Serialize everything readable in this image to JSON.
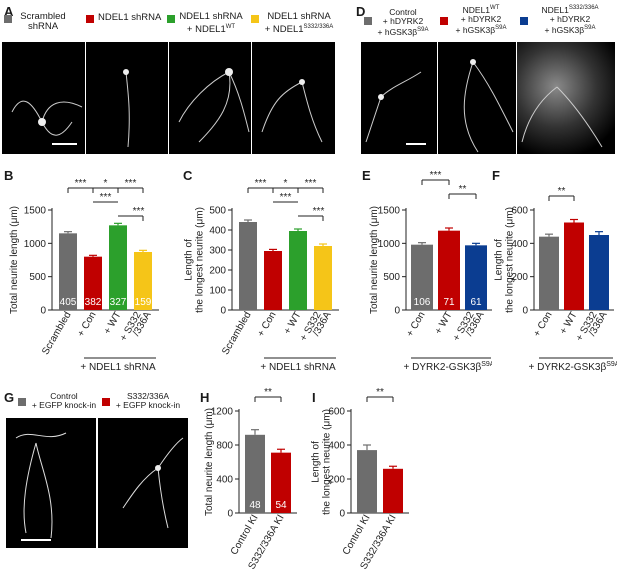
{
  "panels": {
    "A": {
      "letter": "A",
      "legend": [
        {
          "label_lines": [
            "Scrambled",
            "shRNA"
          ],
          "color": "#6d6d6d"
        },
        {
          "label_lines": [
            "NDEL1 shRNA",
            ""
          ],
          "color": "#c00000"
        },
        {
          "label_lines": [
            "NDEL1 shRNA",
            "+ NDEL1WT"
          ],
          "color": "#2ca02c"
        },
        {
          "label_lines": [
            "NDEL1 shRNA",
            "+ NDEL1S332/336A"
          ],
          "color": "#f5c518"
        }
      ]
    },
    "D": {
      "letter": "D",
      "legend": [
        {
          "label_lines": [
            "Control",
            "+ hDYRK2",
            "+ hGSK3βS9A"
          ],
          "color": "#6d6d6d"
        },
        {
          "label_lines": [
            "NDEL1WT",
            "+ hDYRK2",
            "+ hGSK3βS9A"
          ],
          "color": "#c00000"
        },
        {
          "label_lines": [
            "NDEL1S332/336A",
            "+ hDYRK2",
            "+ hGSK3βS9A"
          ],
          "color": "#0b3d91"
        }
      ]
    },
    "G": {
      "letter": "G",
      "legend": [
        {
          "label_lines": [
            "Control",
            "+ EGFP knock-in"
          ],
          "color": "#6d6d6d"
        },
        {
          "label_lines": [
            "S332/336A",
            "+ EGFP knock-in"
          ],
          "color": "#c00000"
        }
      ]
    }
  },
  "chart_data": [
    {
      "id": "B",
      "letter": "B",
      "type": "bar",
      "ylabel": "Total neurite length (μm)",
      "ylim": [
        0,
        1500
      ],
      "yticks": [
        0,
        500,
        1000,
        1500
      ],
      "categories": [
        "Scrambled",
        "+ Con",
        "+ WT",
        "+ S332 /336A"
      ],
      "values": [
        1150,
        800,
        1270,
        870
      ],
      "errors": [
        25,
        20,
        30,
        25
      ],
      "n_labels": [
        "405",
        "382",
        "327",
        "159"
      ],
      "colors": [
        "#6d6d6d",
        "#c00000",
        "#2ca02c",
        "#f5c518"
      ],
      "group_label": "+ NDEL1 shRNA",
      "significance": [
        "***",
        "*",
        "***",
        "***",
        "***"
      ]
    },
    {
      "id": "C",
      "letter": "C",
      "type": "bar",
      "ylabel": "Length of the longest neurite (μm)",
      "ylim": [
        0,
        500
      ],
      "yticks": [
        0,
        100,
        200,
        300,
        400,
        500
      ],
      "categories": [
        "Scrambled",
        "+ Con",
        "+ WT",
        "+ S332 /336A"
      ],
      "values": [
        440,
        295,
        395,
        320
      ],
      "errors": [
        10,
        8,
        10,
        10
      ],
      "n_labels": [],
      "colors": [
        "#6d6d6d",
        "#c00000",
        "#2ca02c",
        "#f5c518"
      ],
      "group_label": "+ NDEL1 shRNA",
      "significance": [
        "***",
        "*",
        "***",
        "***",
        "***"
      ]
    },
    {
      "id": "E",
      "letter": "E",
      "type": "bar",
      "ylabel": "Total neurite length (μm)",
      "ylim": [
        0,
        1500
      ],
      "yticks": [
        0,
        500,
        1000,
        1500
      ],
      "categories": [
        "+ Con",
        "+ WT",
        "+ S332 /336A"
      ],
      "values": [
        980,
        1190,
        970
      ],
      "errors": [
        30,
        40,
        30
      ],
      "n_labels": [
        "106",
        "71",
        "61"
      ],
      "colors": [
        "#6d6d6d",
        "#c00000",
        "#0b3d91"
      ],
      "group_label": "+ DYRK2-GSK3βS9A",
      "significance": [
        "***",
        "**"
      ]
    },
    {
      "id": "F",
      "letter": "F",
      "type": "bar",
      "ylabel": "Length of the longest neurite (μm)",
      "ylim": [
        0,
        600
      ],
      "yticks": [
        0,
        200,
        400,
        600
      ],
      "categories": [
        "+ Con",
        "+ WT",
        "+ S332 /336A"
      ],
      "values": [
        440,
        525,
        450
      ],
      "errors": [
        15,
        18,
        20
      ],
      "n_labels": [],
      "colors": [
        "#6d6d6d",
        "#c00000",
        "#0b3d91"
      ],
      "group_label": "+ DYRK2-GSK3βS9A",
      "significance": [
        "**"
      ]
    },
    {
      "id": "H",
      "letter": "H",
      "type": "bar",
      "ylabel": "Total neurite length (μm)",
      "ylim": [
        0,
        1200
      ],
      "yticks": [
        0,
        400,
        800,
        1200
      ],
      "categories": [
        "Control KI",
        "S332/336A KI"
      ],
      "values": [
        920,
        710
      ],
      "errors": [
        60,
        40
      ],
      "n_labels": [
        "48",
        "54"
      ],
      "colors": [
        "#6d6d6d",
        "#c00000"
      ],
      "group_label": "",
      "significance": [
        "**"
      ]
    },
    {
      "id": "I",
      "letter": "I",
      "type": "bar",
      "ylabel": "Length of the longest neurite (μm)",
      "ylim": [
        0,
        600
      ],
      "yticks": [
        0,
        200,
        400,
        600
      ],
      "categories": [
        "Control KI",
        "S332/336A KI"
      ],
      "values": [
        370,
        260
      ],
      "errors": [
        30,
        15
      ],
      "n_labels": [],
      "colors": [
        "#6d6d6d",
        "#c00000"
      ],
      "group_label": "",
      "significance": [
        "**"
      ]
    }
  ]
}
